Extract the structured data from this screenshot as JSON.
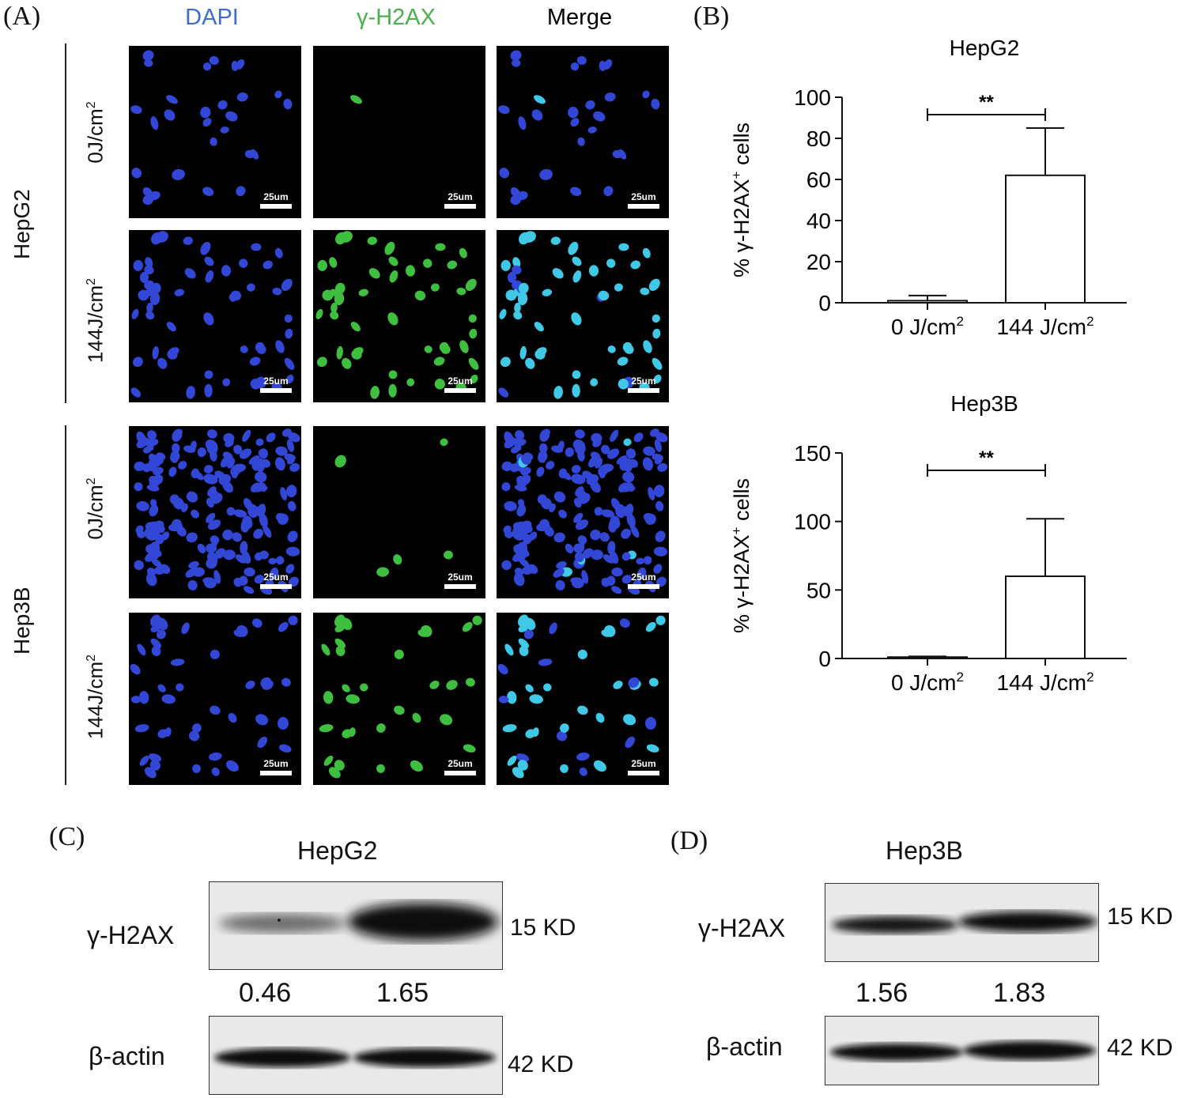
{
  "panels": {
    "A": "(A)",
    "B": "(B)",
    "C": "(C)",
    "D": "(D)"
  },
  "panel_a": {
    "columns": [
      "DAPI",
      "γ-H2AX",
      "Merge"
    ],
    "column_colors": [
      "#3f6cd0",
      "#4bb04b",
      "#000000"
    ],
    "groups": [
      {
        "name": "HepG2",
        "conditions": [
          "0J/cm",
          "144J/cm"
        ]
      },
      {
        "name": "Hep3B",
        "conditions": [
          "0J/cm",
          "144J/cm"
        ]
      }
    ],
    "superscript": "2",
    "scale_bar": "25um"
  },
  "chart_data": [
    {
      "type": "bar",
      "title": "HepG2",
      "categories": [
        "0 J/cm",
        "144 J/cm"
      ],
      "category_superscript": "2",
      "values": [
        1,
        62
      ],
      "errors": [
        2.5,
        23
      ],
      "ylabel": "% γ-H2AX",
      "ylabel_sup": "+",
      "ylabel_tail": " cells",
      "ylim": [
        0,
        100
      ],
      "yticks": [
        0,
        20,
        40,
        60,
        80,
        100
      ],
      "significance": "**"
    },
    {
      "type": "bar",
      "title": "Hep3B",
      "categories": [
        "0 J/cm",
        "144 J/cm"
      ],
      "category_superscript": "2",
      "values": [
        1,
        60
      ],
      "errors": [
        0.5,
        42
      ],
      "ylabel": "% γ-H2AX",
      "ylabel_sup": "+",
      "ylabel_tail": " cells",
      "ylim": [
        0,
        150
      ],
      "yticks": [
        0,
        50,
        100,
        150
      ],
      "significance": "**"
    }
  ],
  "panel_c": {
    "title": "HepG2",
    "top_label": "γ-H2AX",
    "top_size": "15 KD",
    "quant": [
      "0.46",
      "1.65"
    ],
    "bottom_label": "β-actin",
    "bottom_size": "42 KD"
  },
  "panel_d": {
    "title": "Hep3B",
    "top_label": "γ-H2AX",
    "top_size": "15 KD",
    "quant": [
      "1.56",
      "1.83"
    ],
    "bottom_label": "β-actin",
    "bottom_size": "42 KD"
  }
}
